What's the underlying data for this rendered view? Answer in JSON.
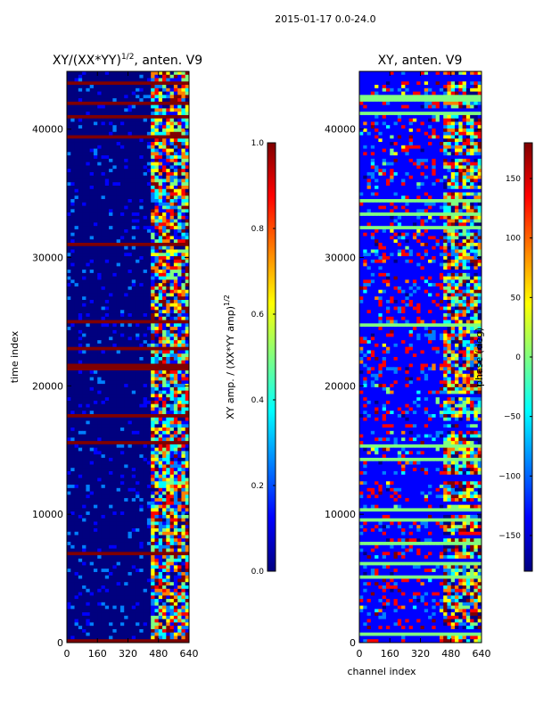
{
  "suptitle": "2015-01-17 0.0-24.0",
  "colors": {
    "jet": [
      "#00007f",
      "#0000ff",
      "#0080ff",
      "#00ffff",
      "#80ff80",
      "#ffff00",
      "#ff8000",
      "#ff0000",
      "#7f0000"
    ]
  },
  "chart_data": [
    {
      "type": "heatmap",
      "title": "XY/(XX*YY)",
      "title_exponent": "1/2",
      "title_suffix": ", anten. V9",
      "xlabel": "",
      "ylabel": "time index",
      "xticks": [
        "0",
        "160",
        "320",
        "480",
        "640"
      ],
      "xtick_values": [
        0,
        160,
        320,
        480,
        640
      ],
      "yticks": [
        "0",
        "10000",
        "20000",
        "30000",
        "40000"
      ],
      "ytick_values": [
        0,
        10000,
        20000,
        30000,
        40000
      ],
      "xlim": [
        0,
        640
      ],
      "ylim": [
        0,
        44500
      ],
      "colorbar": {
        "label": "XY amp. / (XX*YY amp)",
        "label_exponent": "1/2",
        "ticks": [
          "0.0",
          "0.2",
          "0.4",
          "0.6",
          "0.8",
          "1.0"
        ],
        "tick_values": [
          0.0,
          0.2,
          0.4,
          0.6,
          0.8,
          1.0
        ],
        "range": [
          0.0,
          1.0
        ]
      }
    },
    {
      "type": "heatmap",
      "title": "XY, anten. V9",
      "xlabel": "channel index",
      "ylabel": "",
      "xticks": [
        "0",
        "160",
        "320",
        "480",
        "640"
      ],
      "xtick_values": [
        0,
        160,
        320,
        480,
        640
      ],
      "yticks": [
        "0",
        "10000",
        "20000",
        "30000",
        "40000"
      ],
      "ytick_values": [
        0,
        10000,
        20000,
        30000,
        40000
      ],
      "xlim": [
        0,
        640
      ],
      "ylim": [
        0,
        44500
      ],
      "colorbar": {
        "label": "phase (deg)",
        "ticks": [
          "−150",
          "−100",
          "−50",
          "0",
          "50",
          "100",
          "150"
        ],
        "tick_values": [
          -150,
          -100,
          -50,
          0,
          50,
          100,
          150
        ],
        "range": [
          -180,
          180
        ]
      }
    }
  ]
}
